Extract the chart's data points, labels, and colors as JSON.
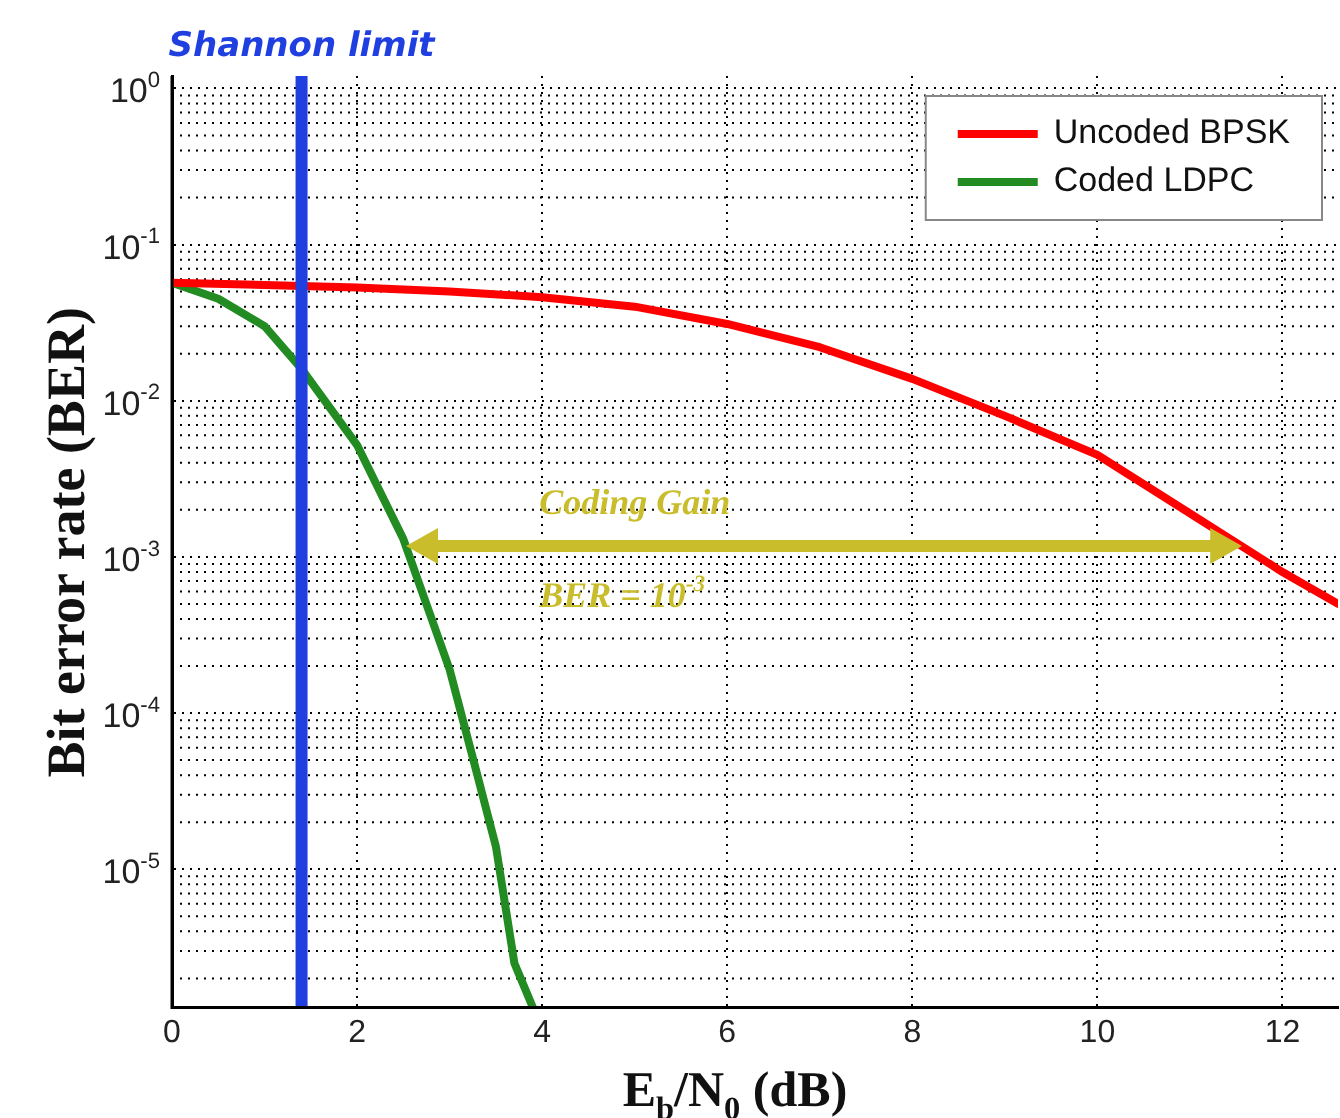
{
  "chart_data": {
    "type": "line",
    "xlabel": "E$_{b}$/N$_{0}$ (dB)",
    "ylabel": "Bit error rate (BER)",
    "xlim": [
      0,
      12.6
    ],
    "xticks": [
      0,
      2,
      4,
      6,
      8,
      10,
      12
    ],
    "ylim": [
      1.3e-06,
      1.2
    ],
    "yticks": [
      {
        "value": 1,
        "label": "10$^{0}$"
      },
      {
        "value": 0.1,
        "label": "10$^{-1}$"
      },
      {
        "value": 0.01,
        "label": "10$^{-2}$"
      },
      {
        "value": 0.001,
        "label": "10$^{-3}$"
      },
      {
        "value": 0.0001,
        "label": "10$^{-4}$"
      },
      {
        "value": 1e-05,
        "label": "10$^{-5}$"
      }
    ],
    "log": "y",
    "grid": true,
    "legend": "top right",
    "marker": "none",
    "line_style": "solid",
    "series": [
      {
        "name": "Uncoded BPSK",
        "color": "#ff0000",
        "x": [
          0,
          1,
          2,
          3,
          4,
          5,
          6,
          7,
          8,
          9,
          10,
          11,
          12,
          12.6
        ],
        "values": [
          0.057,
          0.055,
          0.053,
          0.05,
          0.046,
          0.04,
          0.031,
          0.022,
          0.0138,
          0.008,
          0.0045,
          0.0019,
          0.0008,
          0.0005
        ]
      },
      {
        "name": "Coded LDPC",
        "color": "#228b22",
        "x": [
          0,
          0.5,
          1,
          1.4,
          2,
          2.5,
          3,
          3.3,
          3.5,
          3.7,
          3.9
        ],
        "values": [
          0.057,
          0.045,
          0.03,
          0.016,
          0.0052,
          0.0013,
          0.00019,
          4e-05,
          1.4e-05,
          2.5e-06,
          1.3e-06
        ]
      }
    ],
    "ref_lines": [
      {
        "axis": "x",
        "value": 1.4,
        "label": "Shannon limit",
        "color": "#1f3fe0"
      }
    ],
    "annotations": [
      "Coding Gain",
      "BER = 10$^{-3}$"
    ]
  }
}
